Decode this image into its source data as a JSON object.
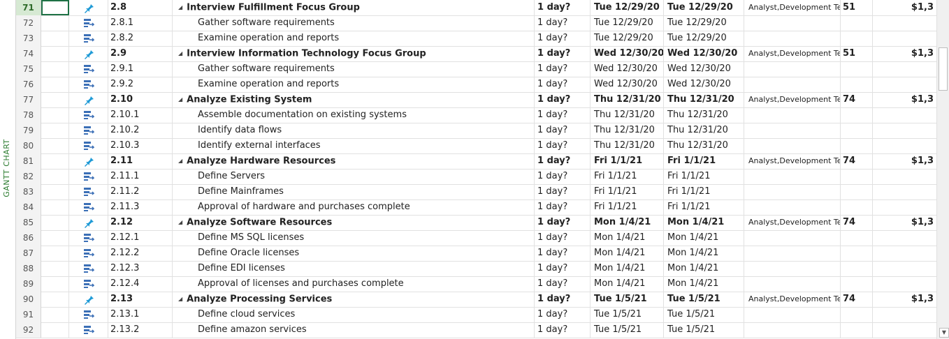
{
  "sidebar": {
    "label": "GANTT CHART"
  },
  "rows": [
    {
      "id": "71",
      "mode": "manual",
      "wbs": "2.8",
      "name": "Interview Fulfillment Focus Group",
      "summary": true,
      "duration": "1 day?",
      "start": "Tue 12/29/20",
      "finish": "Tue 12/29/20",
      "resources": "Analyst,Development Te",
      "pred": "51",
      "cost": "$1,3"
    },
    {
      "id": "72",
      "mode": "auto",
      "wbs": "2.8.1",
      "name": "Gather software requirements",
      "summary": false,
      "duration": "1 day?",
      "start": "Tue 12/29/20",
      "finish": "Tue 12/29/20",
      "resources": "",
      "pred": "",
      "cost": ""
    },
    {
      "id": "73",
      "mode": "auto",
      "wbs": "2.8.2",
      "name": "Examine operation and reports",
      "summary": false,
      "duration": "1 day?",
      "start": "Tue 12/29/20",
      "finish": "Tue 12/29/20",
      "resources": "",
      "pred": "",
      "cost": ""
    },
    {
      "id": "74",
      "mode": "manual",
      "wbs": "2.9",
      "name": "Interview Information Technology Focus Group",
      "summary": true,
      "duration": "1 day?",
      "start": "Wed 12/30/20",
      "finish": "Wed 12/30/20",
      "resources": "Analyst,Development Te",
      "pred": "51",
      "cost": "$1,3"
    },
    {
      "id": "75",
      "mode": "auto",
      "wbs": "2.9.1",
      "name": "Gather software requirements",
      "summary": false,
      "duration": "1 day?",
      "start": "Wed 12/30/20",
      "finish": "Wed 12/30/20",
      "resources": "",
      "pred": "",
      "cost": ""
    },
    {
      "id": "76",
      "mode": "auto",
      "wbs": "2.9.2",
      "name": "Examine operation and reports",
      "summary": false,
      "duration": "1 day?",
      "start": "Wed 12/30/20",
      "finish": "Wed 12/30/20",
      "resources": "",
      "pred": "",
      "cost": ""
    },
    {
      "id": "77",
      "mode": "manual",
      "wbs": "2.10",
      "name": "Analyze Existing System",
      "summary": true,
      "duration": "1 day?",
      "start": "Thu 12/31/20",
      "finish": "Thu 12/31/20",
      "resources": "Analyst,Development Te",
      "pred": "74",
      "cost": "$1,3"
    },
    {
      "id": "78",
      "mode": "auto",
      "wbs": "2.10.1",
      "name": "Assemble documentation on existing systems",
      "summary": false,
      "duration": "1 day?",
      "start": "Thu 12/31/20",
      "finish": "Thu 12/31/20",
      "resources": "",
      "pred": "",
      "cost": ""
    },
    {
      "id": "79",
      "mode": "auto",
      "wbs": "2.10.2",
      "name": "Identify data flows",
      "summary": false,
      "duration": "1 day?",
      "start": "Thu 12/31/20",
      "finish": "Thu 12/31/20",
      "resources": "",
      "pred": "",
      "cost": ""
    },
    {
      "id": "80",
      "mode": "auto",
      "wbs": "2.10.3",
      "name": "Identify external interfaces",
      "summary": false,
      "duration": "1 day?",
      "start": "Thu 12/31/20",
      "finish": "Thu 12/31/20",
      "resources": "",
      "pred": "",
      "cost": ""
    },
    {
      "id": "81",
      "mode": "manual",
      "wbs": "2.11",
      "name": "Analyze Hardware Resources",
      "summary": true,
      "duration": "1 day?",
      "start": "Fri 1/1/21",
      "finish": "Fri 1/1/21",
      "resources": "Analyst,Development Te",
      "pred": "74",
      "cost": "$1,3"
    },
    {
      "id": "82",
      "mode": "auto",
      "wbs": "2.11.1",
      "name": "Define Servers",
      "summary": false,
      "duration": "1 day?",
      "start": "Fri 1/1/21",
      "finish": "Fri 1/1/21",
      "resources": "",
      "pred": "",
      "cost": ""
    },
    {
      "id": "83",
      "mode": "auto",
      "wbs": "2.11.2",
      "name": "Define Mainframes",
      "summary": false,
      "duration": "1 day?",
      "start": "Fri 1/1/21",
      "finish": "Fri 1/1/21",
      "resources": "",
      "pred": "",
      "cost": ""
    },
    {
      "id": "84",
      "mode": "auto",
      "wbs": "2.11.3",
      "name": "Approval of hardware and purchases complete",
      "summary": false,
      "duration": "1 day?",
      "start": "Fri 1/1/21",
      "finish": "Fri 1/1/21",
      "resources": "",
      "pred": "",
      "cost": ""
    },
    {
      "id": "85",
      "mode": "manual",
      "wbs": "2.12",
      "name": "Analyze Software Resources",
      "summary": true,
      "duration": "1 day?",
      "start": "Mon 1/4/21",
      "finish": "Mon 1/4/21",
      "resources": "Analyst,Development Te",
      "pred": "74",
      "cost": "$1,3"
    },
    {
      "id": "86",
      "mode": "auto",
      "wbs": "2.12.1",
      "name": "Define MS SQL licenses",
      "summary": false,
      "duration": "1 day?",
      "start": "Mon 1/4/21",
      "finish": "Mon 1/4/21",
      "resources": "",
      "pred": "",
      "cost": ""
    },
    {
      "id": "87",
      "mode": "auto",
      "wbs": "2.12.2",
      "name": "Define Oracle licenses",
      "summary": false,
      "duration": "1 day?",
      "start": "Mon 1/4/21",
      "finish": "Mon 1/4/21",
      "resources": "",
      "pred": "",
      "cost": ""
    },
    {
      "id": "88",
      "mode": "auto",
      "wbs": "2.12.3",
      "name": "Define EDI licenses",
      "summary": false,
      "duration": "1 day?",
      "start": "Mon 1/4/21",
      "finish": "Mon 1/4/21",
      "resources": "",
      "pred": "",
      "cost": ""
    },
    {
      "id": "89",
      "mode": "auto",
      "wbs": "2.12.4",
      "name": "Approval of licenses and purchases complete",
      "summary": false,
      "duration": "1 day?",
      "start": "Mon 1/4/21",
      "finish": "Mon 1/4/21",
      "resources": "",
      "pred": "",
      "cost": ""
    },
    {
      "id": "90",
      "mode": "manual",
      "wbs": "2.13",
      "name": "Analyze Processing Services",
      "summary": true,
      "duration": "1 day?",
      "start": "Tue 1/5/21",
      "finish": "Tue 1/5/21",
      "resources": "Analyst,Development Te",
      "pred": "74",
      "cost": "$1,3"
    },
    {
      "id": "91",
      "mode": "auto",
      "wbs": "2.13.1",
      "name": "Define cloud services",
      "summary": false,
      "duration": "1 day?",
      "start": "Tue 1/5/21",
      "finish": "Tue 1/5/21",
      "resources": "",
      "pred": "",
      "cost": ""
    },
    {
      "id": "92",
      "mode": "auto",
      "wbs": "2.13.2",
      "name": "Define amazon services",
      "summary": false,
      "duration": "1 day?",
      "start": "Tue 1/5/21",
      "finish": "Tue 1/5/21",
      "resources": "",
      "pred": "",
      "cost": ""
    }
  ],
  "selected_row": "71",
  "colors": {
    "accent_green": "#2e7d32",
    "pin_blue": "#1e9ad6",
    "auto_blue": "#3b6fb6"
  }
}
